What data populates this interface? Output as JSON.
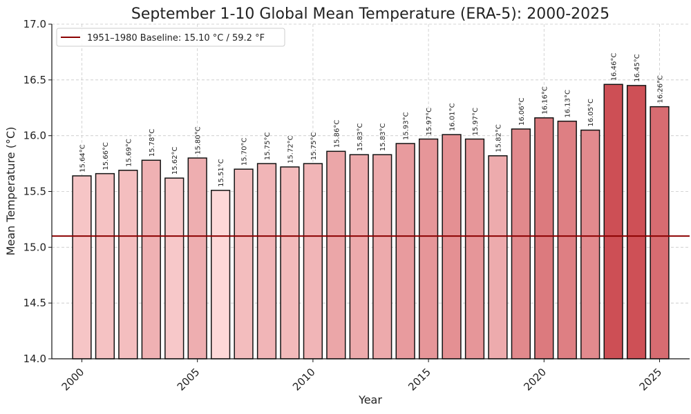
{
  "chart_data": {
    "type": "bar",
    "title": "September 1-10 Global Mean Temperature (ERA-5): 2000-2025",
    "xlabel": "Year",
    "ylabel": "Mean Temperature (°C)",
    "ylim": [
      14.0,
      17.0
    ],
    "xlim": [
      1998.7,
      2026.3
    ],
    "yticks": [
      14.0,
      14.5,
      15.0,
      15.5,
      16.0,
      16.5,
      17.0
    ],
    "xticks": [
      2000,
      2005,
      2010,
      2015,
      2020,
      2025
    ],
    "grid": true,
    "legend_position": "top-left",
    "categories": [
      2000,
      2001,
      2002,
      2003,
      2004,
      2005,
      2006,
      2007,
      2008,
      2009,
      2010,
      2011,
      2012,
      2013,
      2014,
      2015,
      2016,
      2017,
      2018,
      2019,
      2020,
      2021,
      2022,
      2023,
      2024,
      2025
    ],
    "series": [
      {
        "values": [
          15.64,
          15.66,
          15.69,
          15.78,
          15.62,
          15.8,
          15.51,
          15.7,
          15.75,
          15.72,
          15.75,
          15.86,
          15.83,
          15.83,
          15.93,
          15.97,
          16.01,
          15.97,
          15.82,
          16.06,
          16.16,
          16.13,
          16.05,
          16.46,
          16.45,
          16.26
        ],
        "data_labels": [
          "15.64°C",
          "15.66°C",
          "15.69°C",
          "15.78°C",
          "15.62°C",
          "15.80°C",
          "15.51°C",
          "15.70°C",
          "15.75°C",
          "15.72°C",
          "15.75°C",
          "15.86°C",
          "15.83°C",
          "15.83°C",
          "15.93°C",
          "15.97°C",
          "16.01°C",
          "15.97°C",
          "15.82°C",
          "16.06°C",
          "16.16°C",
          "16.13°C",
          "16.05°C",
          "16.46°C",
          "16.45°C",
          "16.26°C"
        ]
      }
    ],
    "baseline": {
      "value": 15.1,
      "label": "1951–1980 Baseline: 15.10 °C / 59.2 °F",
      "color": "#8b0000"
    },
    "colors": {
      "bar_low": "#fdd8d8",
      "bar_high": "#cd4f55",
      "bar_edge": "#111111",
      "grid": "#c8c8c8"
    }
  }
}
